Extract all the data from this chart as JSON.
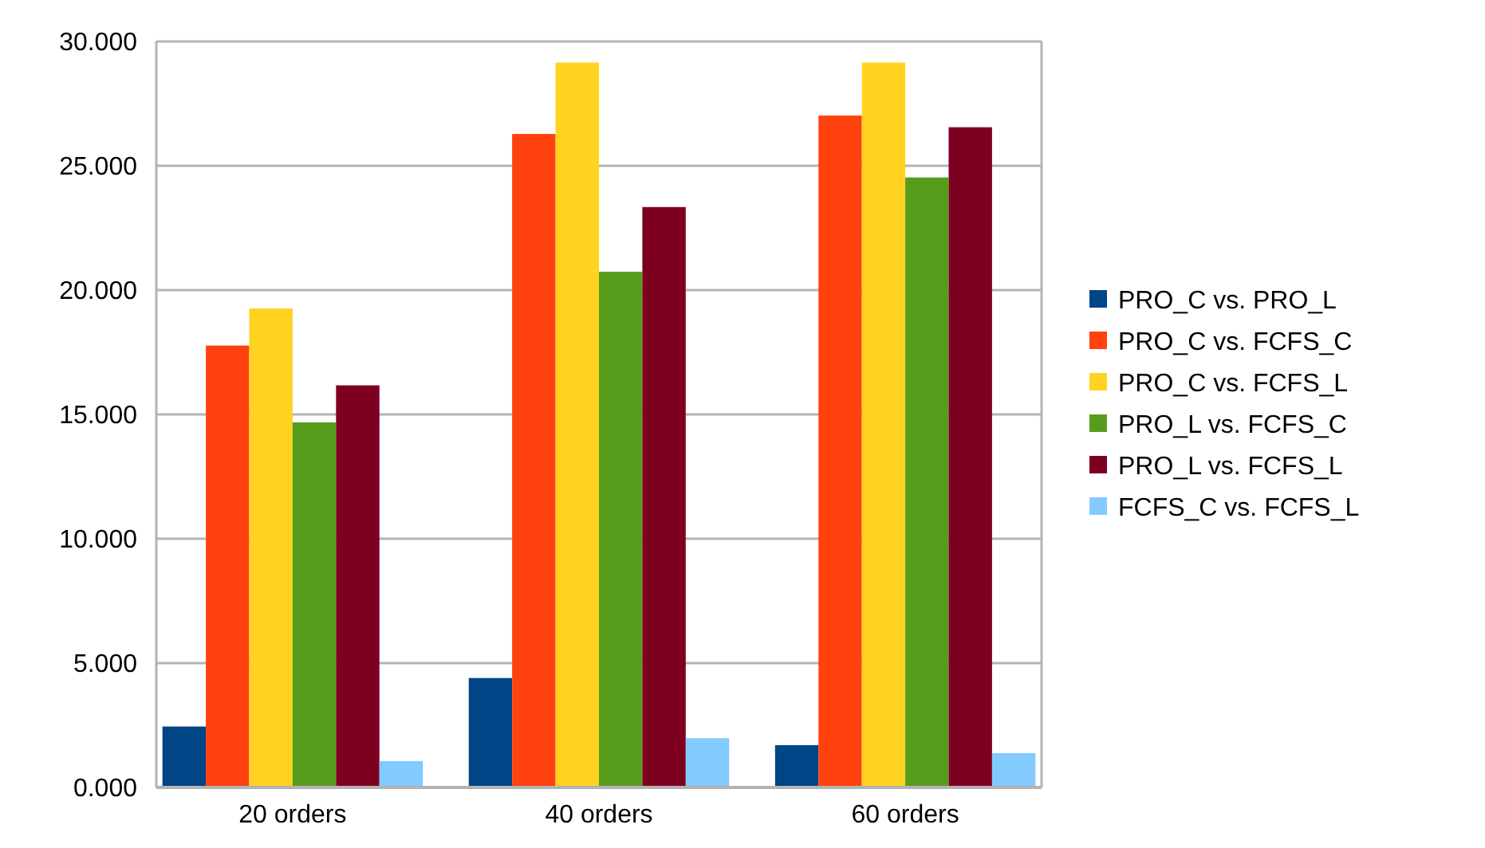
{
  "chart_data": {
    "type": "bar",
    "categories": [
      "20 orders",
      "40 orders",
      "60 orders"
    ],
    "series": [
      {
        "name": "PRO_C vs. PRO_L",
        "color": "#004586",
        "values": [
          2.45,
          4.4,
          1.7
        ]
      },
      {
        "name": "PRO_C vs. FCFS_C",
        "color": "#ff420e",
        "values": [
          17.77,
          26.28,
          27.02
        ]
      },
      {
        "name": "PRO_C vs. FCFS_L",
        "color": "#ffd320",
        "values": [
          19.26,
          29.15,
          29.15
        ]
      },
      {
        "name": "PRO_L vs. FCFS_C",
        "color": "#579d1c",
        "values": [
          14.68,
          20.74,
          24.53
        ]
      },
      {
        "name": "PRO_L vs. FCFS_L",
        "color": "#7e0021",
        "values": [
          16.17,
          23.34,
          26.55
        ]
      },
      {
        "name": "FCFS_C vs. FCFS_L",
        "color": "#83caff",
        "values": [
          1.06,
          1.98,
          1.38
        ]
      }
    ],
    "ylim": [
      0,
      30
    ],
    "yticks": [
      {
        "value": 0,
        "label": "0.000"
      },
      {
        "value": 5,
        "label": "5.000"
      },
      {
        "value": 10,
        "label": "10.000"
      },
      {
        "value": 15,
        "label": "15.000"
      },
      {
        "value": 20,
        "label": "20.000"
      },
      {
        "value": 25,
        "label": "25.000"
      },
      {
        "value": 30,
        "label": "30.000"
      }
    ],
    "grid": "y",
    "legend": "right"
  }
}
